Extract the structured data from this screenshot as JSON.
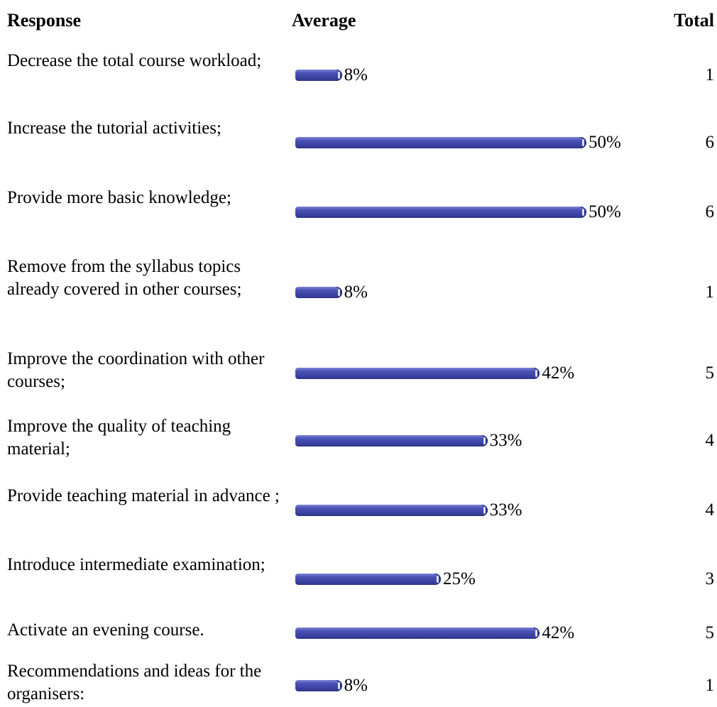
{
  "headers": {
    "response": "Response",
    "average": "Average",
    "total": "Total"
  },
  "bar_color": "#3f46a8",
  "chart_data": {
    "type": "bar",
    "orientation": "horizontal",
    "categories": [
      "Decrease the total course workload;",
      "Increase the tutorial activities;",
      "Provide more basic knowledge;",
      "Remove from the syllabus topics already covered in other courses;",
      "Improve the coordination with other courses;",
      "Improve the quality of teaching material;",
      "Provide teaching material in advance ;",
      "Introduce intermediate examination;",
      "Activate an evening course.",
      "Recommendations and ideas for the organisers:"
    ],
    "values": [
      8,
      50,
      50,
      8,
      42,
      33,
      33,
      25,
      42,
      8
    ],
    "value_labels": [
      "8%",
      "50%",
      "50%",
      "8%",
      "42%",
      "33%",
      "33%",
      "25%",
      "42%",
      "8%"
    ],
    "totals": [
      "1",
      "6",
      "6",
      "1",
      "5",
      "4",
      "4",
      "3",
      "5",
      "1"
    ],
    "xlim": [
      0,
      100
    ],
    "grid": false,
    "legend": "none"
  }
}
